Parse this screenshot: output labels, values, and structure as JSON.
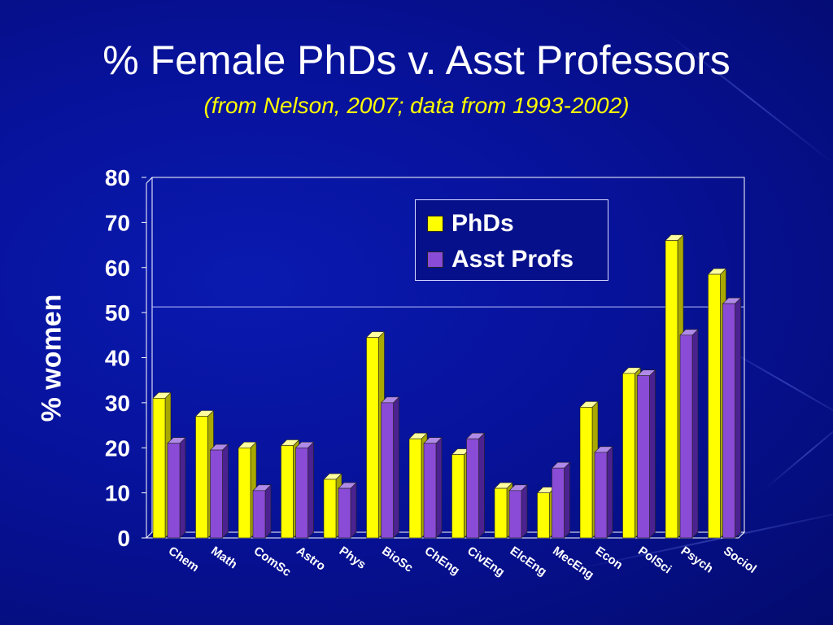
{
  "slide": {
    "title": "% Female PhDs v. Asst Professors",
    "subtitle": "(from Nelson, 2007; data from 1993-2002)"
  },
  "chart_data": {
    "type": "bar",
    "title": "% Female PhDs v. Asst Professors",
    "subtitle": "(from Nelson, 2007; data from 1993-2002)",
    "xlabel": "",
    "ylabel": "% women",
    "ylim": [
      0,
      80
    ],
    "yticks": [
      "0",
      "10",
      "20",
      "30",
      "40",
      "50",
      "60",
      "70",
      "80"
    ],
    "grid": false,
    "reference_line": 50,
    "legend_position": "top-right",
    "categories": [
      "Chem",
      "Math",
      "ComSc",
      "Astro",
      "Phys",
      "BioSc",
      "ChEng",
      "CivEng",
      "ElcEng",
      "MecEng",
      "Econ",
      "PolSci",
      "Psych",
      "Sociol"
    ],
    "series": [
      {
        "name": "PhDs",
        "color": "#ffff00",
        "values": [
          31,
          27,
          20,
          20.5,
          13,
          44.5,
          22,
          18.5,
          11,
          10,
          29,
          36.5,
          66,
          58.5
        ]
      },
      {
        "name": "Asst Profs",
        "color": "#8a4bd6",
        "values": [
          21,
          19.5,
          10.5,
          20,
          11,
          30,
          21,
          22,
          10.5,
          15.5,
          19,
          36,
          45,
          52
        ]
      }
    ]
  }
}
